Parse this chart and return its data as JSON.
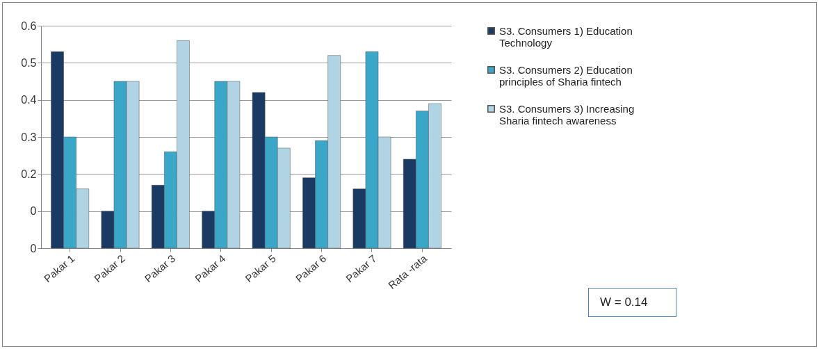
{
  "chart_data": {
    "type": "bar",
    "categories": [
      "Pakar 1",
      "Pakar 2",
      "Pakar 3",
      "Pakar 4",
      "Pakar 5",
      "Pakar 6",
      "Pakar 7",
      "Rata -rata"
    ],
    "series": [
      {
        "name": "S3. Consumers 1) Education Technology",
        "color": "#1b3a63",
        "values": [
          0.53,
          0.1,
          0.17,
          0.1,
          0.42,
          0.19,
          0.16,
          0.24
        ]
      },
      {
        "name": "S3. Consumers 2) Education principles of Sharia fintech",
        "color": "#3aa6c8",
        "values": [
          0.3,
          0.45,
          0.26,
          0.45,
          0.3,
          0.29,
          0.53,
          0.37
        ]
      },
      {
        "name": "S3. Consumers 3) Increasing Sharia fintech awareness",
        "color": "#b0d4e3",
        "values": [
          0.16,
          0.45,
          0.56,
          0.45,
          0.27,
          0.52,
          0.3,
          0.39
        ]
      }
    ],
    "ylim": [
      0,
      0.6
    ],
    "yticks": [
      {
        "value": 0,
        "label": "0"
      },
      {
        "value": 0.1,
        "label": "0"
      },
      0.2,
      0.3,
      0.4,
      0.5,
      0.6
    ],
    "grid": "y",
    "legend": "right",
    "annotations": [
      "W = 0.14"
    ]
  }
}
